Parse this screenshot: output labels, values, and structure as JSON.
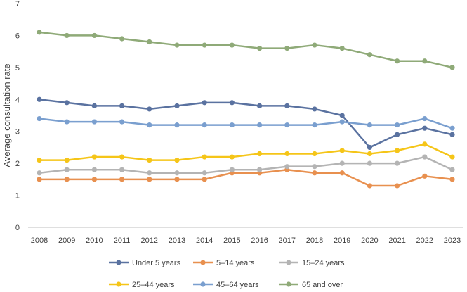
{
  "chart_data": {
    "type": "line",
    "title": "",
    "xlabel": "",
    "ylabel": "Average consultation rate",
    "ylim": [
      0,
      7
    ],
    "yticks": [
      "0",
      "1",
      "2",
      "3",
      "4",
      "5",
      "6",
      "7"
    ],
    "categories": [
      "2008",
      "2009",
      "2010",
      "2011",
      "2012",
      "2013",
      "2014",
      "2015",
      "2016",
      "2017",
      "2018",
      "2019",
      "2020",
      "2021",
      "2022",
      "2023"
    ],
    "grid": false,
    "legend_position": "bottom",
    "series": [
      {
        "name": "Under 5 years",
        "color": "#5a72a0",
        "values": [
          4.0,
          3.9,
          3.8,
          3.8,
          3.7,
          3.8,
          3.9,
          3.9,
          3.8,
          3.8,
          3.7,
          3.5,
          2.5,
          2.9,
          3.1,
          2.9
        ]
      },
      {
        "name": "5–14 years",
        "color": "#e8904f",
        "values": [
          1.5,
          1.5,
          1.5,
          1.5,
          1.5,
          1.5,
          1.5,
          1.7,
          1.7,
          1.8,
          1.7,
          1.7,
          1.3,
          1.3,
          1.6,
          1.5
        ]
      },
      {
        "name": "15–24 years",
        "color": "#b4b4b4",
        "values": [
          1.7,
          1.8,
          1.8,
          1.8,
          1.7,
          1.7,
          1.7,
          1.8,
          1.8,
          1.9,
          1.9,
          2.0,
          2.0,
          2.0,
          2.2,
          1.8
        ]
      },
      {
        "name": "25–44 years",
        "color": "#f5c518",
        "values": [
          2.1,
          2.1,
          2.2,
          2.2,
          2.1,
          2.1,
          2.2,
          2.2,
          2.3,
          2.3,
          2.3,
          2.4,
          2.3,
          2.4,
          2.6,
          2.2
        ]
      },
      {
        "name": "45–64 years",
        "color": "#7a9fcf",
        "values": [
          3.4,
          3.3,
          3.3,
          3.3,
          3.2,
          3.2,
          3.2,
          3.2,
          3.2,
          3.2,
          3.2,
          3.3,
          3.2,
          3.2,
          3.4,
          3.1
        ]
      },
      {
        "name": "65 and over",
        "color": "#8faa78",
        "values": [
          6.1,
          6.0,
          6.0,
          5.9,
          5.8,
          5.7,
          5.7,
          5.7,
          5.6,
          5.6,
          5.7,
          5.6,
          5.4,
          5.2,
          5.2,
          5.0
        ]
      }
    ]
  }
}
